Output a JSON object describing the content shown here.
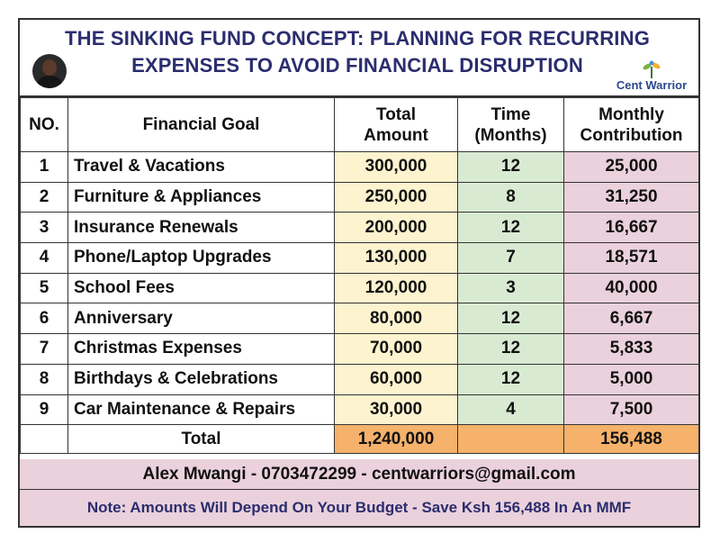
{
  "header": {
    "title_line1": "THE SINKING FUND CONCEPT: PLANNING FOR RECURRING",
    "title_line2": "EXPENSES TO AVOID FINANCIAL DISRUPTION",
    "logo_text": "Cent Warrior"
  },
  "table": {
    "headers": {
      "no": "NO.",
      "goal": "Financial Goal",
      "amount_line1": "Total",
      "amount_line2": "Amount",
      "time_line1": "Time",
      "time_line2": "(Months)",
      "monthly_line1": "Monthly",
      "monthly_line2": "Contribution"
    },
    "rows": [
      {
        "no": "1",
        "goal": "Travel & Vacations",
        "amount": "300,000",
        "time": "12",
        "monthly": "25,000"
      },
      {
        "no": "2",
        "goal": "Furniture & Appliances",
        "amount": "250,000",
        "time": "8",
        "monthly": "31,250"
      },
      {
        "no": "3",
        "goal": "Insurance Renewals",
        "amount": "200,000",
        "time": "12",
        "monthly": "16,667"
      },
      {
        "no": "4",
        "goal": "Phone/Laptop Upgrades",
        "amount": "130,000",
        "time": "7",
        "monthly": "18,571"
      },
      {
        "no": "5",
        "goal": "School Fees",
        "amount": "120,000",
        "time": "3",
        "monthly": "40,000"
      },
      {
        "no": "6",
        "goal": "Anniversary",
        "amount": "80,000",
        "time": "12",
        "monthly": "6,667"
      },
      {
        "no": "7",
        "goal": "Christmas Expenses",
        "amount": "70,000",
        "time": "12",
        "monthly": "5,833"
      },
      {
        "no": "8",
        "goal": "Birthdays & Celebrations",
        "amount": "60,000",
        "time": "12",
        "monthly": "5,000"
      },
      {
        "no": "9",
        "goal": "Car Maintenance & Repairs",
        "amount": "30,000",
        "time": "4",
        "monthly": "7,500"
      }
    ],
    "total": {
      "label": "Total",
      "amount": "1,240,000",
      "monthly": "156,488"
    }
  },
  "footer": {
    "contact": "Alex Mwangi - 0703472299 - centwarriors@gmail.com",
    "note": "Note: Amounts Will Depend On Your Budget - Save Ksh 156,488 In An MMF"
  },
  "colors": {
    "title": "#2b2d6e",
    "amount_bg": "#fdf3cf",
    "time_bg": "#d9ead3",
    "monthly_bg": "#ead1dc",
    "total_bg": "#f6b26b",
    "footer_bg": "#ead1dc"
  },
  "icons": {
    "avatar": "person-photo",
    "logo": "plant-sprout-logo"
  }
}
